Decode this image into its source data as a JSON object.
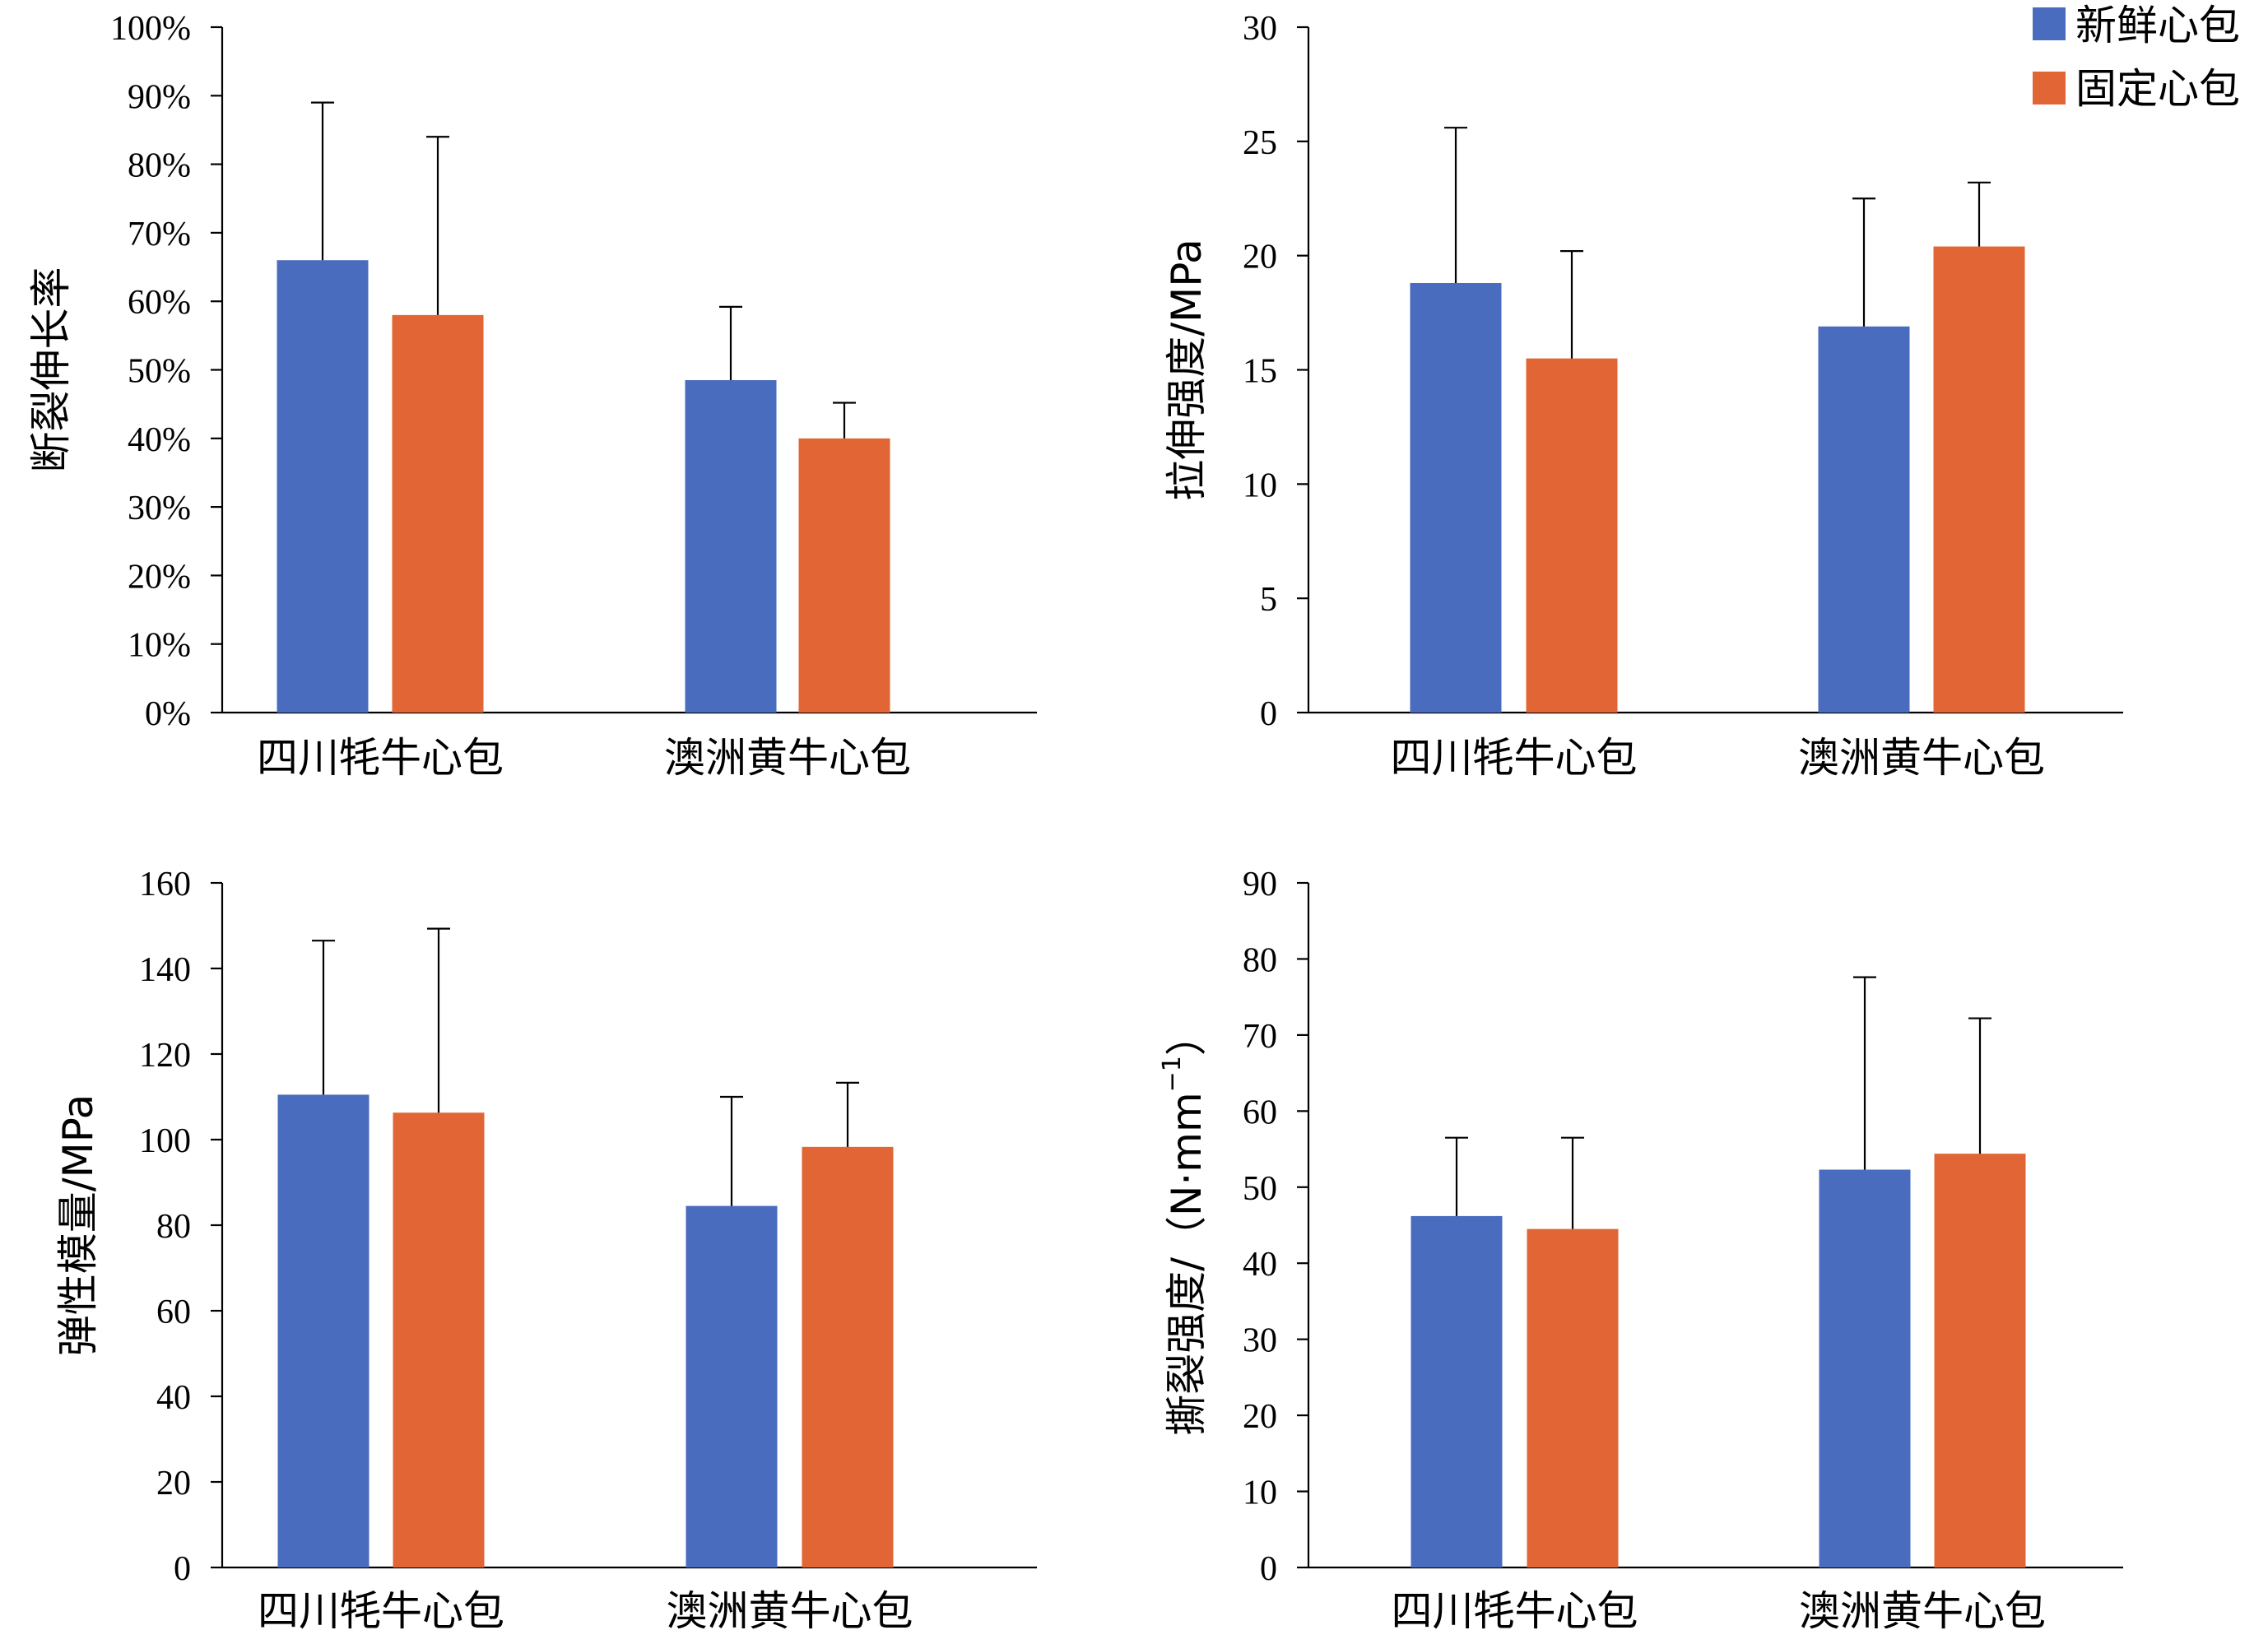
{
  "series_style": {
    "fresh_color": "#4A6CBE",
    "fixed_color": "#E26635"
  },
  "legend": {
    "placement": "top-right",
    "items": [
      "新鲜心包",
      "固定心包"
    ]
  },
  "chart_data": [
    {
      "type": "bar",
      "ylabel": "断裂伸长率",
      "ylim": [
        0,
        100
      ],
      "yticks": [
        "0%",
        "10%",
        "20%",
        "30%",
        "40%",
        "50%",
        "60%",
        "70%",
        "80%",
        "90%",
        "100%"
      ],
      "categories": [
        "四川牦牛心包",
        "澳洲黄牛心包"
      ],
      "series": [
        {
          "name": "新鲜心包",
          "values": [
            66,
            48.5
          ],
          "errors": [
            23,
            10.7
          ]
        },
        {
          "name": "固定心包",
          "values": [
            58,
            40
          ],
          "errors": [
            26,
            5.2
          ]
        }
      ]
    },
    {
      "type": "bar",
      "ylabel": "拉伸强度/MPa",
      "ylim": [
        0,
        30
      ],
      "yticks": [
        "0",
        "5",
        "10",
        "15",
        "20",
        "25",
        "30"
      ],
      "categories": [
        "四川牦牛心包",
        "澳洲黄牛心包"
      ],
      "series": [
        {
          "name": "新鲜心包",
          "values": [
            18.8,
            16.9
          ],
          "errors": [
            6.8,
            5.6
          ]
        },
        {
          "name": "固定心包",
          "values": [
            15.5,
            20.4
          ],
          "errors": [
            4.7,
            2.8
          ]
        }
      ]
    },
    {
      "type": "bar",
      "ylabel": "弹性模量/MPa",
      "ylim": [
        0,
        160
      ],
      "yticks": [
        "0",
        "20",
        "40",
        "60",
        "80",
        "100",
        "120",
        "140",
        "160"
      ],
      "categories": [
        "四川牦牛心包",
        "澳洲黄牛心包"
      ],
      "series": [
        {
          "name": "新鲜心包",
          "values": [
            110.5,
            84.5
          ],
          "errors": [
            36,
            25.5
          ]
        },
        {
          "name": "固定心包",
          "values": [
            106.3,
            98.3
          ],
          "errors": [
            43,
            15
          ]
        }
      ]
    },
    {
      "type": "bar",
      "ylabel": "撕裂强度/（N·mm",
      "ylabel_sup": "−1",
      "ylabel_end": "）",
      "ylim": [
        0,
        90
      ],
      "yticks": [
        "0",
        "10",
        "20",
        "30",
        "40",
        "50",
        "60",
        "70",
        "80",
        "90"
      ],
      "categories": [
        "四川牦牛心包",
        "澳洲黄牛心包"
      ],
      "series": [
        {
          "name": "新鲜心包",
          "values": [
            46.2,
            52.3
          ],
          "errors": [
            10.3,
            25.3
          ]
        },
        {
          "name": "固定心包",
          "values": [
            44.5,
            54.4
          ],
          "errors": [
            12,
            17.8
          ]
        }
      ]
    }
  ]
}
